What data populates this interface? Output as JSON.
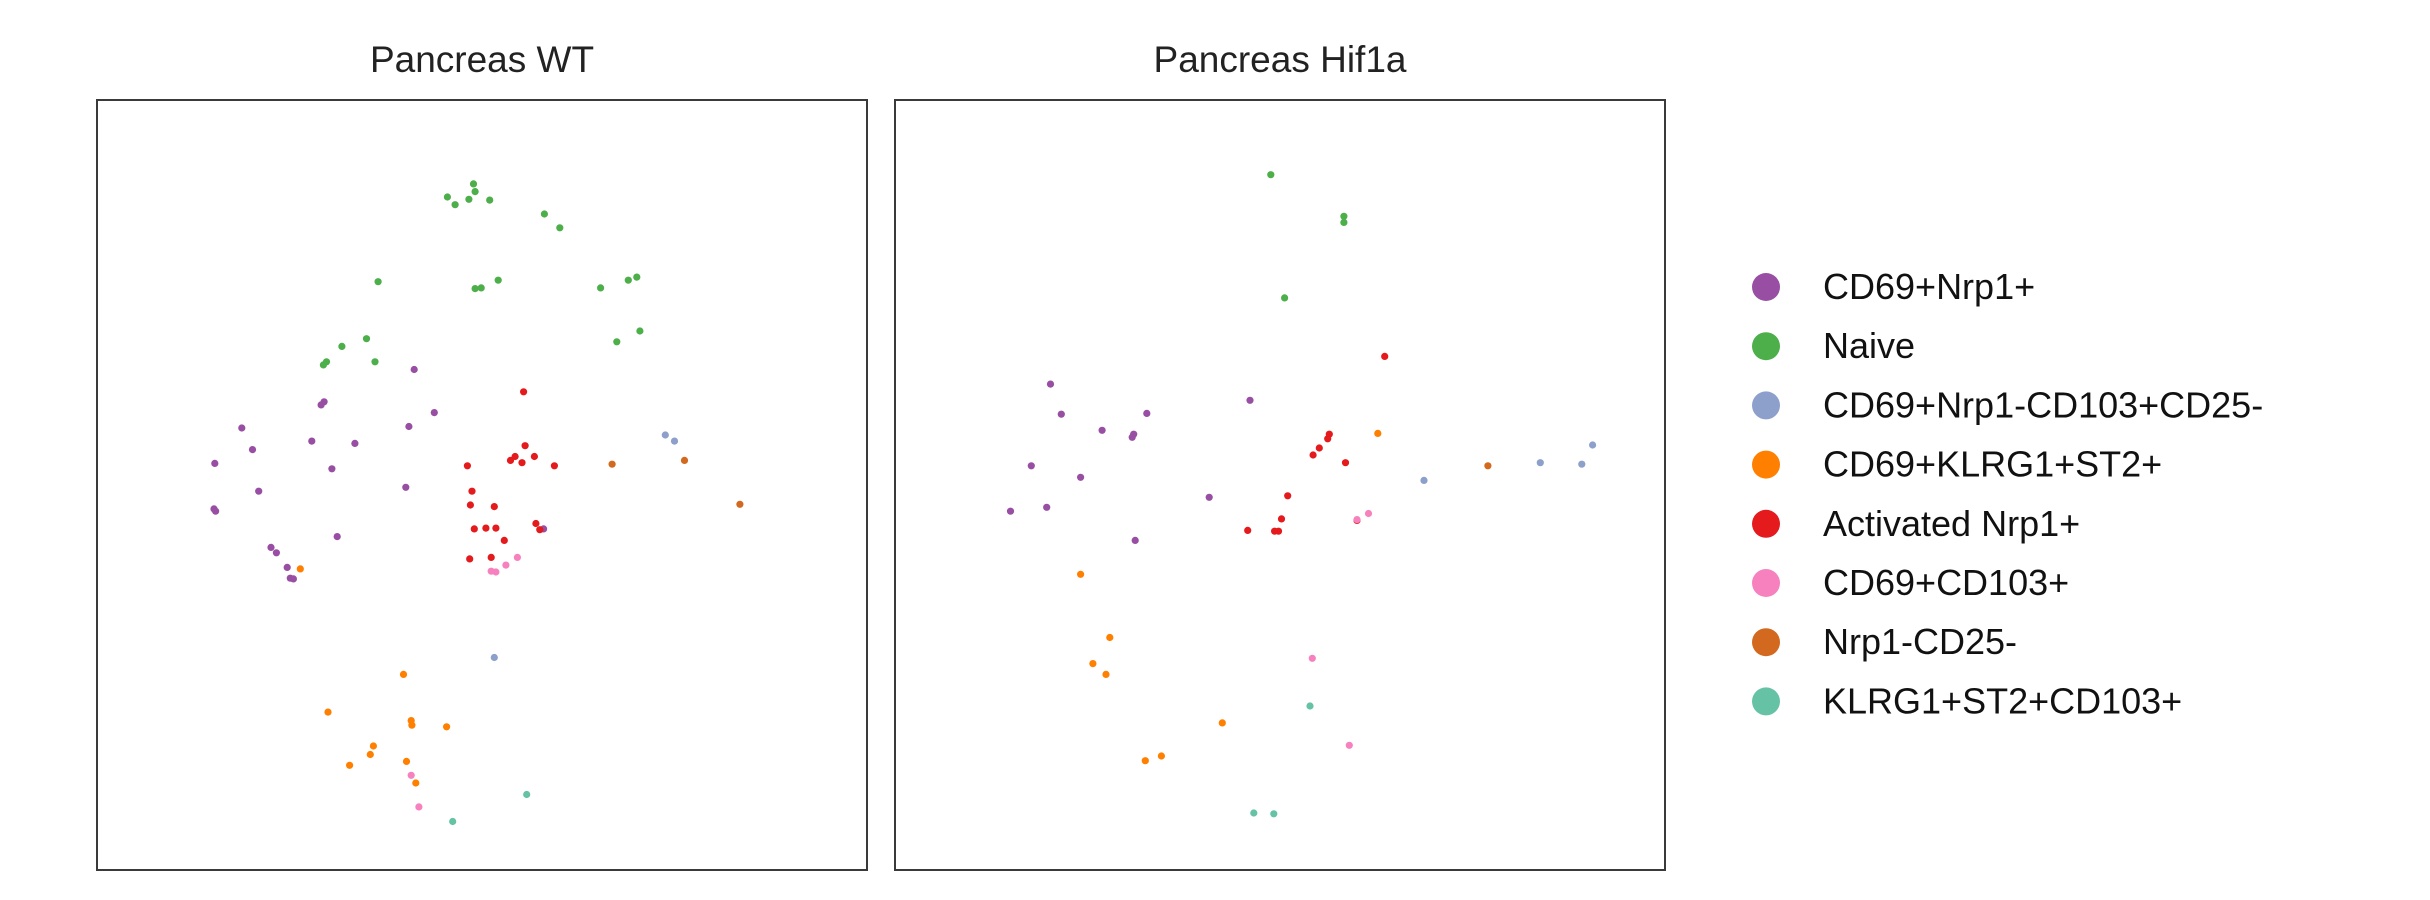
{
  "chart_data": {
    "type": "scatter",
    "colors": {
      "CD69+Nrp1+": "#984ea3",
      "Naive": "#4daf4a",
      "CD69+Nrp1-CD103+CD25-": "#8da0cb",
      "CD69+KLRG1+ST2+": "#ff7f00",
      "Activated Nrp1+": "#e41a1c",
      "CD69+CD103+": "#f781bf",
      "Nrp1-CD25-": "#d2691e",
      "KLRG1+ST2+CD103+": "#66c2a5"
    },
    "legend": {
      "placement": "right",
      "entries": [
        "CD69+Nrp1+",
        "Naive",
        "CD69+Nrp1-CD103+CD25-",
        "CD69+KLRG1+ST2+",
        "Activated Nrp1+",
        "CD69+CD103+",
        "Nrp1-CD25-",
        "KLRG1+ST2+CD103+"
      ]
    },
    "panels": [
      {
        "title": "Pancreas WT",
        "xlim": [
          0,
          100
        ],
        "ylim": [
          0,
          100
        ],
        "grid": false,
        "series": [
          {
            "name": "Naive",
            "points": [
              [
                45.5,
                87.4
              ],
              [
                46.5,
                86.4
              ],
              [
                49.1,
                88.1
              ],
              [
                48.9,
                89.1
              ],
              [
                48.3,
                87.1
              ],
              [
                51.0,
                87.0
              ],
              [
                58.1,
                85.2
              ],
              [
                60.1,
                83.4
              ],
              [
                36.5,
                76.4
              ],
              [
                49.1,
                75.5
              ],
              [
                49.9,
                75.6
              ],
              [
                52.1,
                76.6
              ],
              [
                65.4,
                75.6
              ],
              [
                69.0,
                76.6
              ],
              [
                70.1,
                77.0
              ],
              [
                70.5,
                70.0
              ],
              [
                67.5,
                68.6
              ],
              [
                31.8,
                68.0
              ],
              [
                35.0,
                69.0
              ],
              [
                36.1,
                66.0
              ],
              [
                29.4,
                65.6
              ],
              [
                29.8,
                66.0
              ]
            ]
          },
          {
            "name": "CD69+Nrp1+",
            "points": [
              [
                41.2,
                65.0
              ],
              [
                29.1,
                60.4
              ],
              [
                29.5,
                60.8
              ],
              [
                43.8,
                59.4
              ],
              [
                40.5,
                57.6
              ],
              [
                18.8,
                57.4
              ],
              [
                27.9,
                55.7
              ],
              [
                33.5,
                55.4
              ],
              [
                20.2,
                54.6
              ],
              [
                15.3,
                52.8
              ],
              [
                30.5,
                52.1
              ],
              [
                40.1,
                49.7
              ],
              [
                21.0,
                49.2
              ],
              [
                15.4,
                46.6
              ],
              [
                15.2,
                46.9
              ],
              [
                31.2,
                43.3
              ],
              [
                22.6,
                41.9
              ],
              [
                23.3,
                41.2
              ],
              [
                24.7,
                39.3
              ],
              [
                25.5,
                37.8
              ],
              [
                25.1,
                37.9
              ],
              [
                58.0,
                44.3
              ]
            ]
          },
          {
            "name": "Activated Nrp1+",
            "points": [
              [
                55.4,
                62.1
              ],
              [
                55.6,
                55.1
              ],
              [
                53.7,
                53.2
              ],
              [
                54.3,
                53.7
              ],
              [
                55.2,
                52.9
              ],
              [
                56.8,
                53.7
              ],
              [
                59.4,
                52.5
              ],
              [
                48.1,
                52.5
              ],
              [
                48.7,
                49.2
              ],
              [
                48.5,
                47.4
              ],
              [
                51.6,
                47.2
              ],
              [
                50.5,
                44.4
              ],
              [
                51.8,
                44.4
              ],
              [
                57.0,
                45.0
              ],
              [
                57.5,
                44.2
              ],
              [
                49.0,
                44.3
              ],
              [
                52.9,
                42.8
              ],
              [
                48.4,
                40.4
              ],
              [
                51.2,
                40.6
              ]
            ]
          },
          {
            "name": "CD69+NRP1-CD103+CD25-",
            "points": [
              [
                73.8,
                56.5
              ],
              [
                75.0,
                55.7
              ],
              [
                51.6,
                27.6
              ]
            ]
          },
          {
            "name": "CD69+KLRG1+ST2+",
            "points": [
              [
                26.4,
                39.1
              ],
              [
                39.8,
                25.4
              ],
              [
                30.0,
                20.5
              ],
              [
                40.8,
                19.4
              ],
              [
                40.9,
                18.8
              ],
              [
                45.4,
                18.6
              ],
              [
                35.9,
                16.1
              ],
              [
                35.5,
                15.0
              ],
              [
                32.8,
                13.6
              ],
              [
                40.2,
                14.1
              ],
              [
                41.4,
                11.3
              ]
            ]
          },
          {
            "name": "CD69+CD103+",
            "points": [
              [
                54.6,
                40.6
              ],
              [
                53.1,
                39.6
              ],
              [
                51.8,
                38.7
              ],
              [
                51.2,
                38.8
              ],
              [
                40.8,
                12.3
              ],
              [
                41.8,
                8.2
              ]
            ]
          },
          {
            "name": "Nrp1-CD25-",
            "points": [
              [
                66.9,
                52.7
              ],
              [
                76.3,
                53.2
              ],
              [
                83.5,
                47.5
              ]
            ]
          },
          {
            "name": "KLRG1+ST2+CD103+",
            "points": [
              [
                55.8,
                9.8
              ],
              [
                46.2,
                6.3
              ]
            ]
          }
        ]
      },
      {
        "title": "Pancreas Hif1a",
        "xlim": [
          0,
          100
        ],
        "ylim": [
          0,
          100
        ],
        "grid": false,
        "series": [
          {
            "name": "Naive",
            "points": [
              [
                48.8,
                90.3
              ],
              [
                58.3,
                84.9
              ],
              [
                58.3,
                84.1
              ],
              [
                50.6,
                74.3
              ]
            ]
          },
          {
            "name": "CD69+Nrp1+",
            "points": [
              [
                20.2,
                63.1
              ],
              [
                46.1,
                61.0
              ],
              [
                21.6,
                59.2
              ],
              [
                32.7,
                59.3
              ],
              [
                26.9,
                57.1
              ],
              [
                31.0,
                56.6
              ],
              [
                30.8,
                56.2
              ],
              [
                17.7,
                52.5
              ],
              [
                24.1,
                51.0
              ],
              [
                40.8,
                48.4
              ],
              [
                19.7,
                47.1
              ],
              [
                15.0,
                46.6
              ],
              [
                31.2,
                42.8
              ]
            ]
          },
          {
            "name": "Activated Nrp1+",
            "points": [
              [
                63.6,
                66.7
              ],
              [
                56.4,
                56.6
              ],
              [
                56.2,
                56.0
              ],
              [
                55.1,
                54.8
              ],
              [
                54.3,
                53.9
              ],
              [
                58.5,
                52.9
              ],
              [
                51.0,
                48.6
              ],
              [
                50.2,
                45.6
              ],
              [
                49.8,
                44.0
              ],
              [
                45.8,
                44.1
              ],
              [
                49.3,
                44.0
              ],
              [
                60.0,
                45.4
              ]
            ]
          },
          {
            "name": "CD69+Nrp1-CD103+CD25-",
            "points": [
              [
                90.6,
                55.2
              ],
              [
                89.2,
                52.7
              ],
              [
                83.8,
                52.9
              ],
              [
                68.7,
                50.6
              ]
            ]
          },
          {
            "name": "CD69+KLRG1+ST2+",
            "points": [
              [
                62.7,
                56.7
              ],
              [
                24.1,
                38.4
              ],
              [
                27.9,
                30.2
              ],
              [
                25.7,
                26.8
              ],
              [
                27.4,
                25.4
              ],
              [
                42.5,
                19.1
              ],
              [
                34.6,
                14.8
              ],
              [
                32.5,
                14.2
              ]
            ]
          },
          {
            "name": "CD69+CD103+",
            "points": [
              [
                61.5,
                46.3
              ],
              [
                60.0,
                45.5
              ],
              [
                54.2,
                27.5
              ],
              [
                59.0,
                16.2
              ]
            ]
          },
          {
            "name": "Nrp1-CD25-",
            "points": [
              [
                77.0,
                52.5
              ]
            ]
          },
          {
            "name": "KLRG1+ST2+CD103+",
            "points": [
              [
                53.9,
                21.3
              ],
              [
                46.6,
                7.4
              ],
              [
                49.2,
                7.3
              ]
            ]
          }
        ]
      }
    ]
  }
}
